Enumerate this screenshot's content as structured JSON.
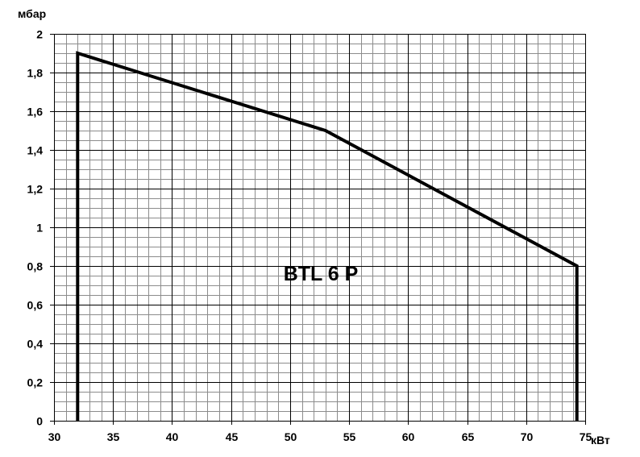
{
  "chart_data": {
    "type": "line",
    "title": "",
    "annotation": "BTL 6 P",
    "xlabel": "кВт",
    "ylabel": "мбар",
    "xlim": [
      30,
      75
    ],
    "ylim": [
      0,
      2
    ],
    "x_ticks": [
      30,
      35,
      40,
      45,
      50,
      55,
      60,
      65,
      70,
      75
    ],
    "x_tick_labels": [
      "30",
      "35",
      "40",
      "45",
      "50",
      "55",
      "60",
      "65",
      "70",
      "75"
    ],
    "y_ticks": [
      0,
      0.2,
      0.4,
      0.6,
      0.8,
      1,
      1.2,
      1.4,
      1.6,
      1.8,
      2
    ],
    "y_tick_labels": [
      "0",
      "0,2",
      "0,4",
      "0,6",
      "0,8",
      "1",
      "1,2",
      "1,4",
      "1,6",
      "1,8",
      "2"
    ],
    "x_minor_step": 1,
    "y_minor_step": 0.05,
    "grid": true,
    "legend": "none",
    "series": [
      {
        "points": [
          {
            "x": 32,
            "y": 0
          },
          {
            "x": 32,
            "y": 1.9
          },
          {
            "x": 53,
            "y": 1.5
          },
          {
            "x": 74.3,
            "y": 0.8
          },
          {
            "x": 74.3,
            "y": 0
          }
        ]
      }
    ],
    "colors": {
      "line": "#000000",
      "grid": "#8c8c8c",
      "axis": "#000000",
      "background": "#ffffff"
    }
  }
}
